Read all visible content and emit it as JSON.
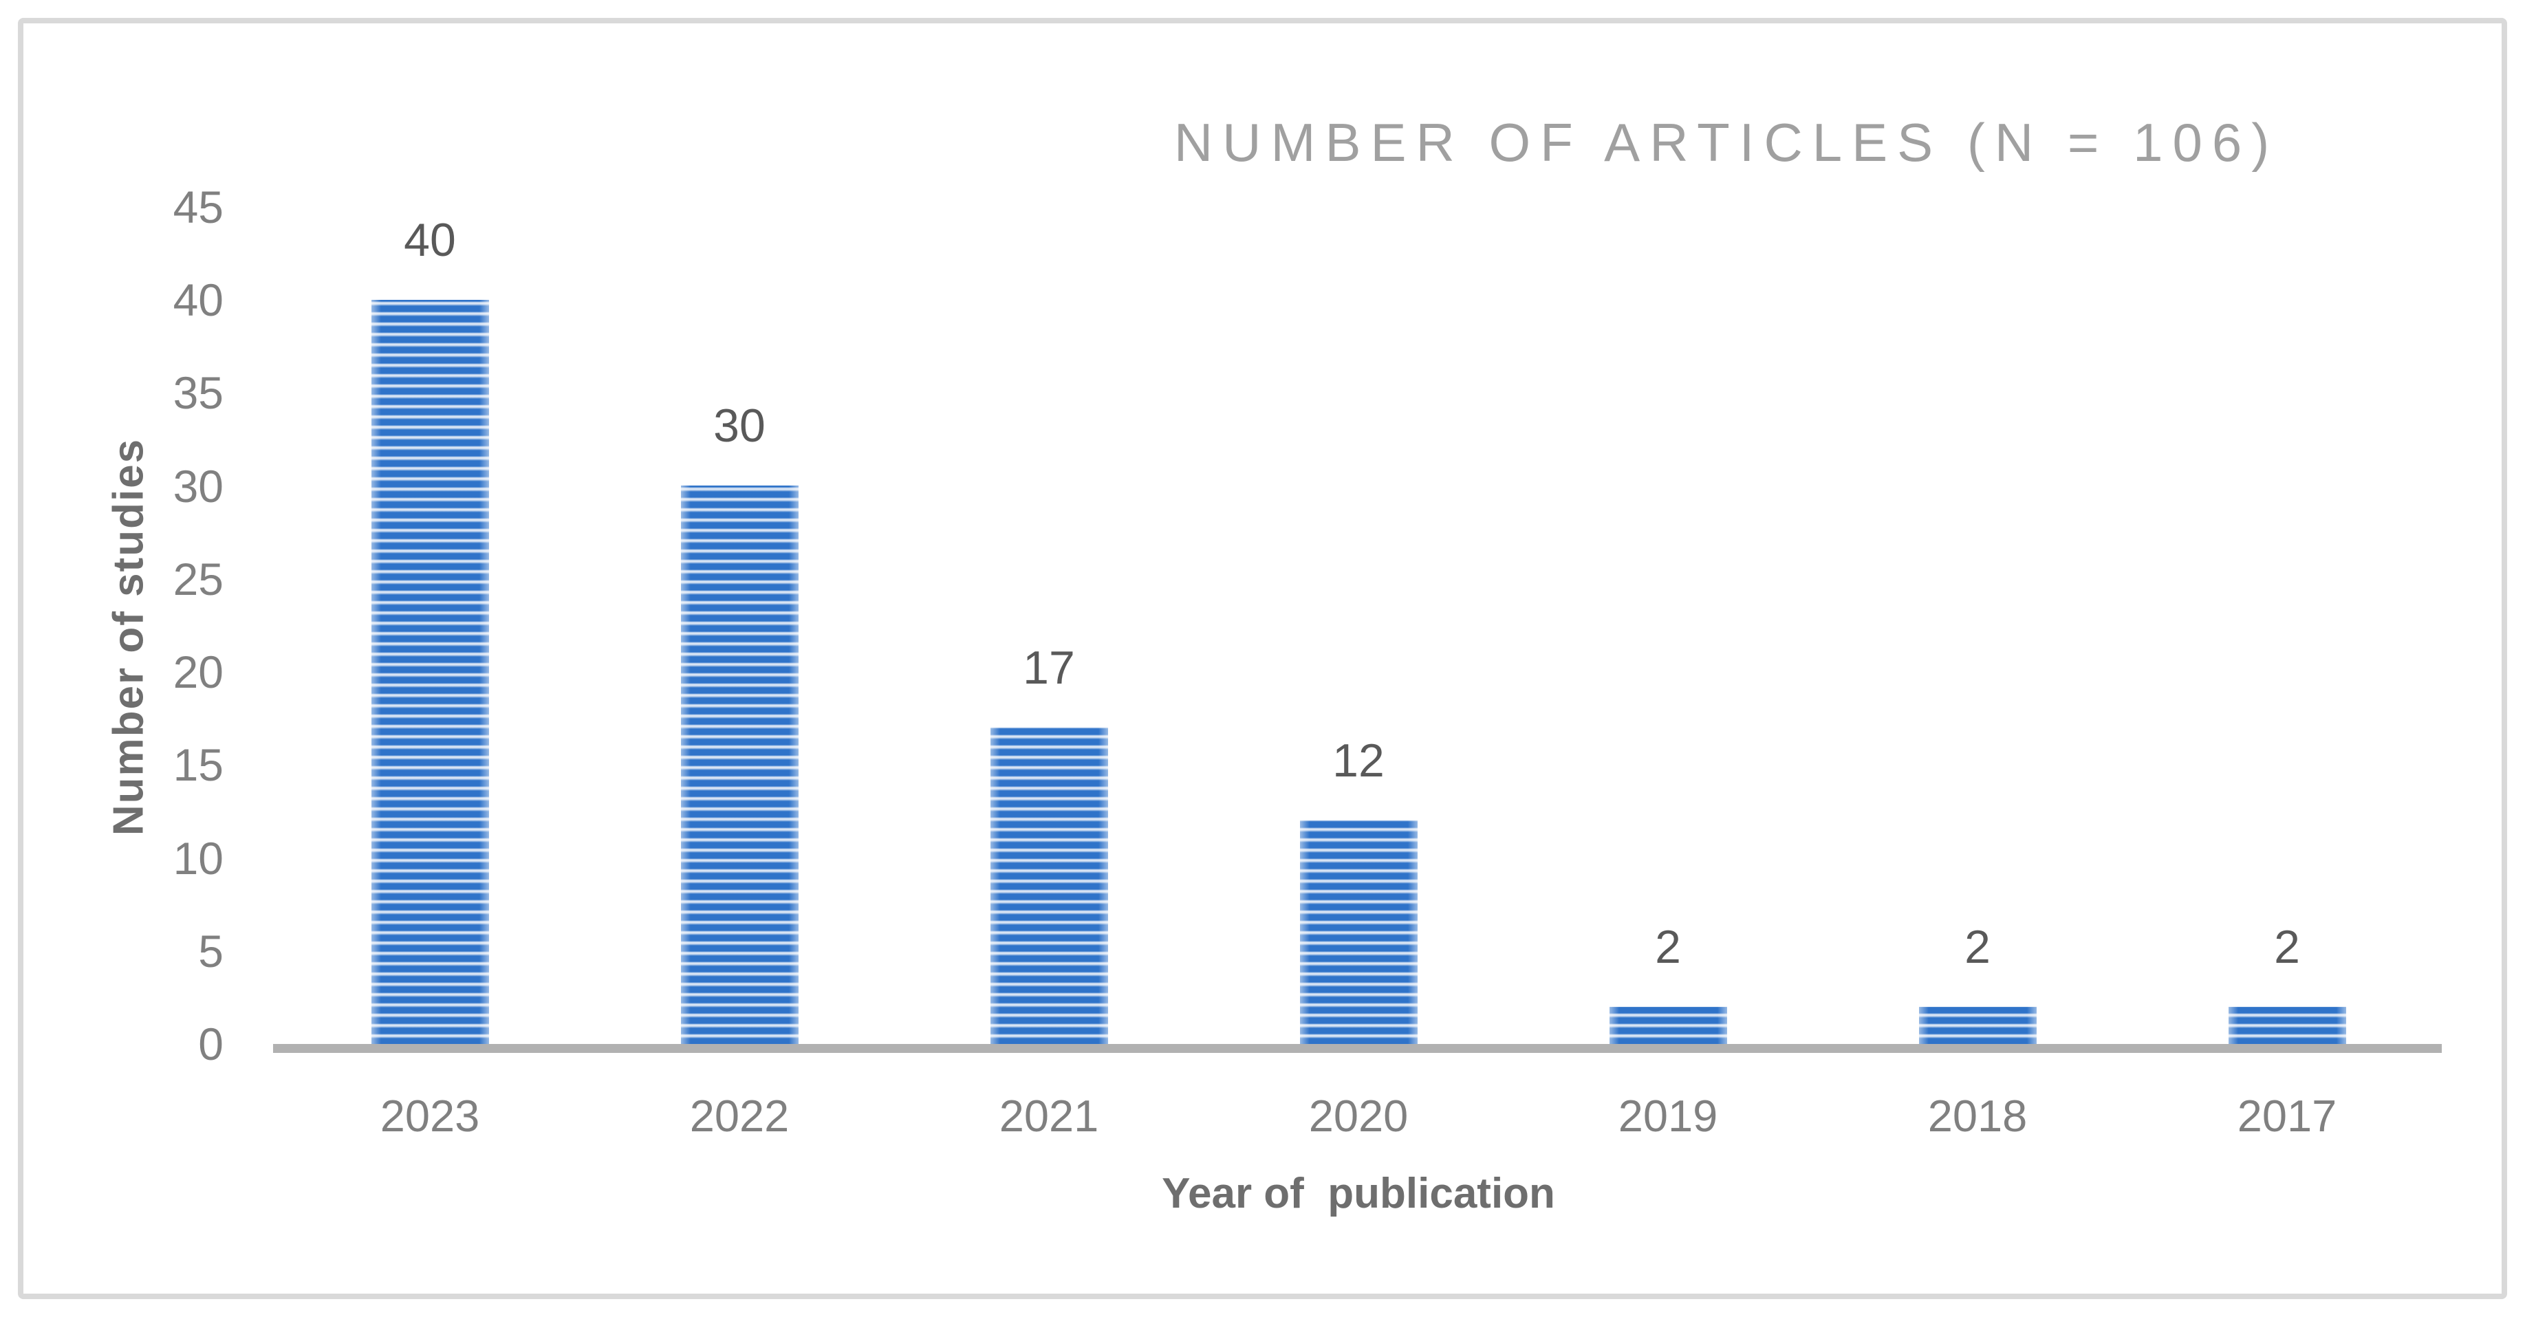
{
  "figure": {
    "title": "NUMBER OF ARTICLES (N = 106)"
  },
  "chart_data": {
    "type": "bar",
    "title": "NUMBER OF ARTICLES (N = 106)",
    "categories": [
      "2023",
      "2022",
      "2021",
      "2020",
      "2019",
      "2018",
      "2017"
    ],
    "values": [
      40,
      30,
      17,
      12,
      2,
      2,
      2
    ],
    "data_labels": [
      "40",
      "30",
      "17",
      "12",
      "2",
      "2",
      "2"
    ],
    "xlabel": "Year of  publication",
    "ylabel": "Number of studies",
    "yticks": [
      0,
      5,
      10,
      15,
      20,
      25,
      30,
      35,
      40,
      45
    ],
    "ylim": [
      0,
      45
    ],
    "grid": false,
    "legend": "none",
    "bar_fill_pattern": "horizontal-stripes",
    "colors": {
      "bar_stripe_dark": "#2f73c9",
      "bar_stripe_light": "#d8e4f4",
      "axis_line": "#b1b1b1",
      "title_text": "#a0a0a0",
      "tick_text": "#808080",
      "data_label_text": "#595959",
      "axis_title_text": "#6e6e6e",
      "border": "#d9d9d9",
      "background": "#ffffff"
    }
  }
}
